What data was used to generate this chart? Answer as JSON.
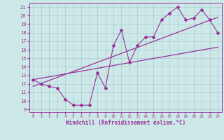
{
  "xlabel": "Windchill (Refroidissement éolien,°C)",
  "bg_color": "#cde8e8",
  "grid_color": "#aacccc",
  "line_color": "#993399",
  "xlim": [
    -0.5,
    23.5
  ],
  "ylim": [
    8.7,
    21.5
  ],
  "xticks": [
    0,
    1,
    2,
    3,
    4,
    5,
    6,
    7,
    8,
    9,
    10,
    11,
    12,
    13,
    14,
    15,
    16,
    17,
    18,
    19,
    20,
    21,
    22,
    23
  ],
  "yticks": [
    9,
    10,
    11,
    12,
    13,
    14,
    15,
    16,
    17,
    18,
    19,
    20,
    21
  ],
  "zigzag_x": [
    0,
    1,
    2,
    3,
    4,
    5,
    6,
    7,
    8,
    9,
    10,
    11,
    12,
    13,
    14,
    15,
    16,
    17,
    18,
    19,
    20,
    21,
    22,
    23
  ],
  "zigzag_y": [
    12.5,
    12.0,
    11.7,
    11.5,
    10.2,
    9.5,
    9.5,
    9.5,
    13.3,
    11.5,
    16.5,
    18.3,
    14.5,
    16.5,
    17.5,
    17.5,
    19.5,
    20.3,
    21.0,
    19.5,
    19.7,
    20.7,
    19.5,
    18.0
  ],
  "trend1_x": [
    0,
    23
  ],
  "trend1_y": [
    12.5,
    16.3
  ],
  "trend2_x": [
    0,
    23
  ],
  "trend2_y": [
    11.7,
    19.8
  ]
}
